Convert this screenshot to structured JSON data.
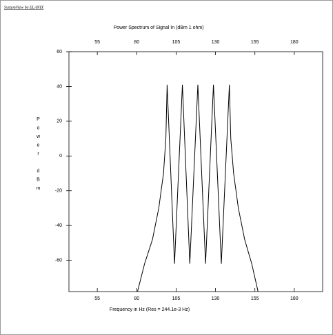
{
  "chart_data": {
    "type": "line",
    "credit": "SystemView by ELANIX",
    "title": "Power Spectrum of Signal In (dBm 1 ohm)",
    "xlabel": "Frequency in Hz (Res = 244.1e-3 Hz)",
    "ylabel": "Power dBm",
    "x": [
      80.5,
      85,
      90,
      94,
      97,
      98.5,
      99.3,
      104,
      109,
      113.7,
      118.8,
      123.7,
      128.7,
      133.7,
      138.8,
      139.7,
      141.5,
      144.5,
      148.5,
      153,
      157
    ],
    "values": [
      -78,
      -62,
      -48,
      -30,
      -10,
      10,
      41,
      -62,
      41,
      -62,
      41,
      -62,
      41,
      -62,
      41,
      10,
      -10,
      -30,
      -48,
      -62,
      -78
    ],
    "color": "#000000",
    "xlim": [
      37,
      198
    ],
    "xticks": [
      55,
      80,
      105,
      130,
      155,
      180
    ],
    "ylim": [
      -78,
      60
    ],
    "yticks": [
      60,
      40,
      20,
      0,
      -20,
      -40,
      -60
    ],
    "grid": false
  }
}
